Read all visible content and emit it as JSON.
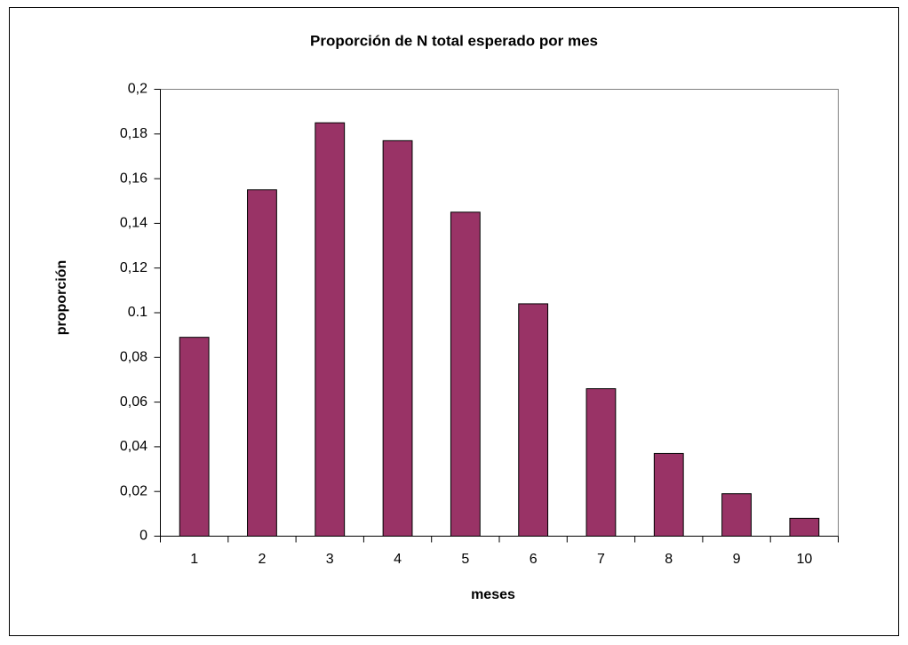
{
  "chart_data": {
    "type": "bar",
    "title": "Proporción de N total esperado por mes",
    "xlabel": "meses",
    "ylabel": "proporción",
    "categories": [
      "1",
      "2",
      "3",
      "4",
      "5",
      "6",
      "7",
      "8",
      "9",
      "10"
    ],
    "values": [
      0.089,
      0.155,
      0.185,
      0.177,
      0.145,
      0.104,
      0.066,
      0.037,
      0.019,
      0.008
    ],
    "color": "#993366",
    "ylim": [
      0,
      0.2
    ],
    "yticks": [
      0,
      {
        "value": 0.02,
        "label": "0,02"
      },
      {
        "value": 0.04,
        "label": "0,04"
      },
      {
        "value": 0.06,
        "label": "0,06"
      },
      {
        "value": 0.08,
        "label": "0,08"
      },
      0.1,
      {
        "value": 0.12,
        "label": "0,12"
      },
      {
        "value": 0.14,
        "label": "0,14"
      },
      {
        "value": 0.16,
        "label": "0,16"
      },
      {
        "value": 0.18,
        "label": "0,18"
      },
      {
        "value": 0.2,
        "label": "0,2"
      }
    ],
    "grid": false
  }
}
